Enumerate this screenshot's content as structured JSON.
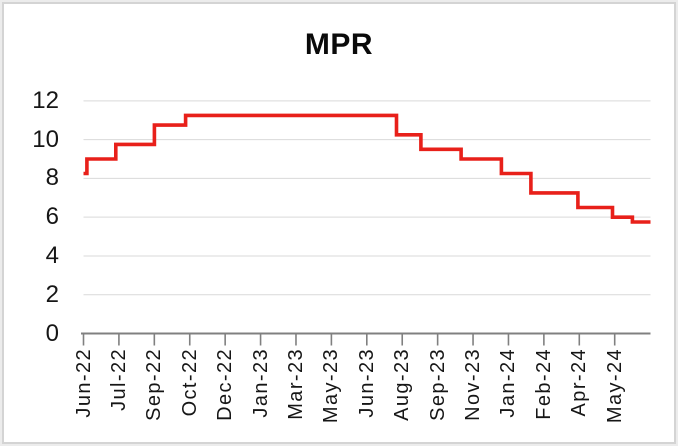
{
  "chart": {
    "title": "MPR"
  },
  "chart_data": {
    "type": "line",
    "subtype": "step",
    "title": "MPR",
    "xlabel": "",
    "ylabel": "",
    "ylim": [
      0,
      12
    ],
    "y_ticks": [
      0,
      2,
      4,
      6,
      8,
      10,
      12
    ],
    "grid": true,
    "legend": false,
    "x_tick_labels": [
      "Jun-22",
      "Jul-22",
      "Sep-22",
      "Oct-22",
      "Dec-22",
      "Jan-23",
      "Mar-23",
      "May-23",
      "Jun-23",
      "Aug-23",
      "Sep-23",
      "Nov-23",
      "Jan-24",
      "Feb-24",
      "Apr-24",
      "May-24"
    ],
    "colors": {
      "line": "#e8201a",
      "gridline": "#d9d9d9",
      "axis": "#808080",
      "tick_label": "#161616",
      "title": "#0a0a0a"
    },
    "series": [
      {
        "name": "MPR",
        "color": "#e8201a",
        "step_points": [
          {
            "t": 0.0,
            "value": 8.25
          },
          {
            "t": 0.006,
            "value": 9.0
          },
          {
            "t": 0.057,
            "value": 9.75
          },
          {
            "t": 0.125,
            "value": 10.75
          },
          {
            "t": 0.18,
            "value": 11.25
          },
          {
            "t": 0.552,
            "value": 10.25
          },
          {
            "t": 0.595,
            "value": 9.5
          },
          {
            "t": 0.666,
            "value": 9.0
          },
          {
            "t": 0.737,
            "value": 8.25
          },
          {
            "t": 0.789,
            "value": 7.25
          },
          {
            "t": 0.872,
            "value": 6.5
          },
          {
            "t": 0.933,
            "value": 6.0
          },
          {
            "t": 0.968,
            "value": 5.75
          }
        ],
        "end_t": 1.0
      }
    ]
  }
}
